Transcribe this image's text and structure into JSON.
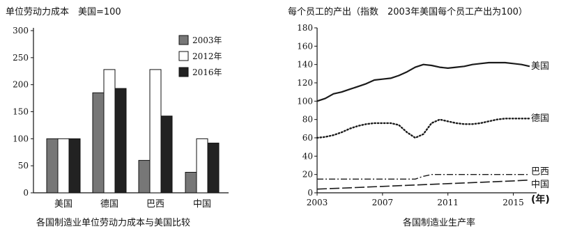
{
  "colors": {
    "axis": "#111111",
    "bar_2003": "#777777",
    "bar_2012": "#ffffff",
    "bar_2016": "#222222",
    "line": "#1a1a1a"
  },
  "chart_data": [
    {
      "type": "bar",
      "title": "单位劳动力成本　美国=100",
      "caption": "各国制造业单位劳动力成本与美国比较",
      "xlabel": "",
      "ylabel": "",
      "ylim": [
        0,
        300
      ],
      "yticks": [
        0,
        50,
        100,
        150,
        200,
        250,
        300
      ],
      "categories": [
        "美国",
        "德国",
        "巴西",
        "中国"
      ],
      "series": [
        {
          "name": "2003年",
          "color_key": "bar_2003",
          "values": [
            100,
            185,
            60,
            38
          ]
        },
        {
          "name": "2012年",
          "color_key": "bar_2012",
          "values": [
            100,
            228,
            228,
            100
          ]
        },
        {
          "name": "2016年",
          "color_key": "bar_2016",
          "values": [
            100,
            193,
            142,
            92
          ]
        }
      ],
      "legend": "top-right",
      "grid": false
    },
    {
      "type": "line",
      "title": "每个员工的产出（指数　2003年美国每个员工产出为100）",
      "caption": "各国制造业生产率",
      "xlabel": "(年)",
      "ylabel": "",
      "xlim": [
        2003,
        2016
      ],
      "ylim": [
        0,
        180
      ],
      "xticks": [
        2003,
        2007,
        2011,
        2015
      ],
      "yticks": [
        0,
        20,
        40,
        60,
        80,
        100,
        120,
        140,
        160,
        180
      ],
      "grid": false,
      "series": [
        {
          "name": "美国",
          "style": "solid",
          "x": [
            2003,
            2003.5,
            2004,
            2004.5,
            2005,
            2005.5,
            2006,
            2006.5,
            2007,
            2007.5,
            2008,
            2008.5,
            2009,
            2009.5,
            2010,
            2010.5,
            2011,
            2011.5,
            2012,
            2012.5,
            2013,
            2013.5,
            2014,
            2014.5,
            2015,
            2015.5,
            2016
          ],
          "y": [
            100,
            103,
            108,
            110,
            113,
            116,
            119,
            123,
            124,
            125,
            128,
            132,
            137,
            140,
            139,
            137,
            136,
            137,
            138,
            140,
            141,
            142,
            142,
            142,
            141,
            140,
            138
          ]
        },
        {
          "name": "德国",
          "style": "dotted",
          "x": [
            2003,
            2003.5,
            2004,
            2004.5,
            2005,
            2005.5,
            2006,
            2006.5,
            2007,
            2007.5,
            2008,
            2008.5,
            2009,
            2009.5,
            2010,
            2010.5,
            2011,
            2011.5,
            2012,
            2012.5,
            2013,
            2013.5,
            2014,
            2014.5,
            2015,
            2015.5,
            2016
          ],
          "y": [
            60,
            61,
            63,
            66,
            70,
            73,
            75,
            76,
            76,
            76,
            74,
            66,
            60,
            64,
            76,
            80,
            78,
            76,
            75,
            75,
            76,
            78,
            80,
            81,
            81,
            81,
            81
          ]
        },
        {
          "name": "巴西",
          "style": "dashdot",
          "x": [
            2003,
            2005,
            2007,
            2009,
            2009.5,
            2010,
            2012,
            2014,
            2016
          ],
          "y": [
            15,
            15,
            15,
            15,
            18,
            20,
            20,
            20,
            20
          ]
        },
        {
          "name": "中国",
          "style": "dashed",
          "x": [
            2003,
            2005,
            2007,
            2009,
            2011,
            2013,
            2015,
            2016
          ],
          "y": [
            4,
            5.5,
            7,
            8.5,
            10,
            11.5,
            13,
            14
          ]
        }
      ]
    }
  ]
}
